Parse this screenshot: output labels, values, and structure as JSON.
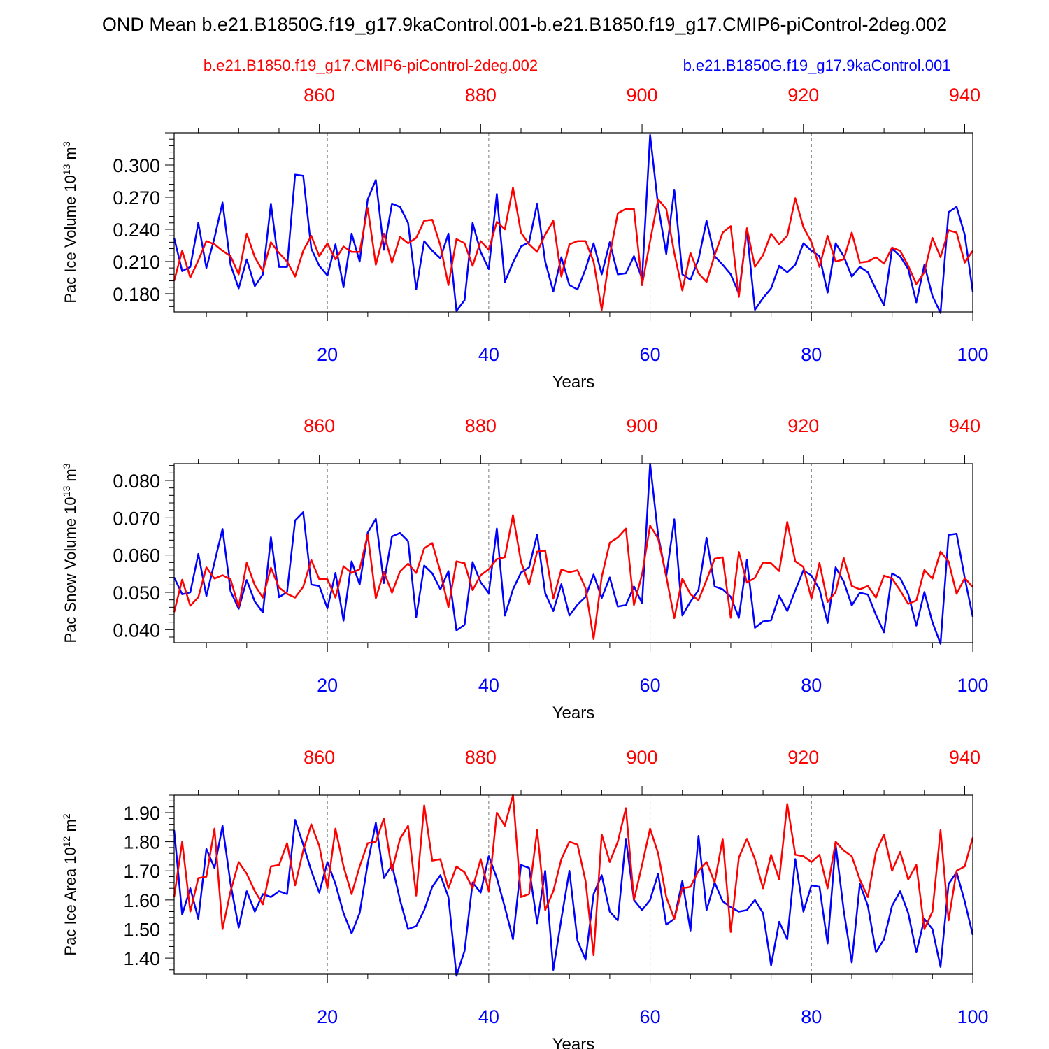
{
  "title": "OND Mean b.e21.B1850G.f19_g17.9kaControl.001-b.e21.B1850.f19_g17.CMIP6-piControl-2deg.002",
  "legend": {
    "red_label": "b.e21.B1850.f19_g17.CMIP6-piControl-2deg.002",
    "blue_label": "b.e21.B1850G.f19_g17.9kaControl.001"
  },
  "colors": {
    "red": "#ff0000",
    "blue": "#0000ff",
    "grid": "#777777"
  },
  "chart_data": [
    {
      "type": "line",
      "title": "",
      "xlabel": "Years",
      "ylabel": "Pac Ice Volume 10^13 m^3",
      "ylabel_main": "Pac Ice Volume 10",
      "ylabel_exp": "13",
      "ylabel_unit": "m",
      "ylabel_unit_exp": "3",
      "xlim": [
        1,
        100
      ],
      "ylim": [
        0.163,
        0.33
      ],
      "yticks": [
        0.18,
        0.21,
        0.24,
        0.27,
        0.3
      ],
      "ytick_labels": [
        "0.180",
        "0.210",
        "0.240",
        "0.270",
        "0.300"
      ],
      "xticks": [
        20,
        40,
        60,
        80,
        100
      ],
      "xtick_labels": [
        "20",
        "40",
        "60",
        "80",
        "100"
      ],
      "top_xticks": [
        860,
        880,
        900,
        920,
        940
      ],
      "top_xtick_labels": [
        "860",
        "880",
        "900",
        "920",
        "940"
      ],
      "top_offset": 841,
      "grid_x": [
        20,
        40,
        60,
        80
      ],
      "series": [
        {
          "name": "b.e21.B1850G.f19_g17.9kaControl.001",
          "color": "blue",
          "values": [
            0.232,
            0.201,
            0.205,
            0.246,
            0.204,
            0.232,
            0.265,
            0.207,
            0.185,
            0.212,
            0.187,
            0.198,
            0.264,
            0.205,
            0.205,
            0.291,
            0.29,
            0.222,
            0.206,
            0.197,
            0.226,
            0.186,
            0.236,
            0.21,
            0.268,
            0.286,
            0.221,
            0.264,
            0.261,
            0.246,
            0.184,
            0.229,
            0.22,
            0.213,
            0.236,
            0.164,
            0.174,
            0.246,
            0.219,
            0.203,
            0.273,
            0.191,
            0.209,
            0.224,
            0.228,
            0.264,
            0.21,
            0.182,
            0.214,
            0.188,
            0.184,
            0.203,
            0.227,
            0.198,
            0.228,
            0.198,
            0.199,
            0.215,
            0.194,
            0.328,
            0.262,
            0.217,
            0.277,
            0.198,
            0.193,
            0.212,
            0.248,
            0.215,
            0.207,
            0.198,
            0.18,
            0.239,
            0.165,
            0.176,
            0.185,
            0.206,
            0.2,
            0.207,
            0.227,
            0.22,
            0.215,
            0.181,
            0.227,
            0.215,
            0.196,
            0.205,
            0.2,
            0.184,
            0.169,
            0.222,
            0.215,
            0.203,
            0.172,
            0.207,
            0.178,
            0.162,
            0.256,
            0.261,
            0.235,
            0.182
          ]
        },
        {
          "name": "b.e21.B1850.f19_g17.CMIP6-piControl-2deg.002",
          "color": "red",
          "values": [
            0.192,
            0.22,
            0.195,
            0.211,
            0.229,
            0.226,
            0.22,
            0.215,
            0.198,
            0.236,
            0.214,
            0.201,
            0.228,
            0.218,
            0.21,
            0.196,
            0.22,
            0.234,
            0.215,
            0.227,
            0.212,
            0.224,
            0.219,
            0.219,
            0.26,
            0.207,
            0.236,
            0.209,
            0.233,
            0.227,
            0.232,
            0.248,
            0.249,
            0.225,
            0.188,
            0.231,
            0.227,
            0.206,
            0.229,
            0.221,
            0.247,
            0.24,
            0.279,
            0.237,
            0.226,
            0.219,
            0.235,
            0.248,
            0.196,
            0.226,
            0.229,
            0.229,
            0.21,
            0.165,
            0.216,
            0.255,
            0.259,
            0.259,
            0.188,
            0.229,
            0.268,
            0.259,
            0.218,
            0.183,
            0.218,
            0.199,
            0.191,
            0.216,
            0.237,
            0.243,
            0.177,
            0.241,
            0.205,
            0.216,
            0.236,
            0.226,
            0.234,
            0.269,
            0.242,
            0.228,
            0.205,
            0.234,
            0.21,
            0.212,
            0.237,
            0.209,
            0.21,
            0.214,
            0.208,
            0.223,
            0.22,
            0.206,
            0.189,
            0.2,
            0.232,
            0.214,
            0.239,
            0.237,
            0.209,
            0.22
          ]
        }
      ]
    },
    {
      "type": "line",
      "title": "",
      "xlabel": "Years",
      "ylabel": "Pac Snow Volume 10^13 m^3",
      "ylabel_main": "Pac Snow Volume 10",
      "ylabel_exp": "13",
      "ylabel_unit": "m",
      "ylabel_unit_exp": "3",
      "xlim": [
        1,
        100
      ],
      "ylim": [
        0.0365,
        0.0845
      ],
      "yticks": [
        0.04,
        0.05,
        0.06,
        0.07,
        0.08
      ],
      "ytick_labels": [
        "0.040",
        "0.050",
        "0.060",
        "0.070",
        "0.080"
      ],
      "xticks": [
        20,
        40,
        60,
        80,
        100
      ],
      "xtick_labels": [
        "20",
        "40",
        "60",
        "80",
        "100"
      ],
      "top_xticks": [
        860,
        880,
        900,
        920,
        940
      ],
      "top_xtick_labels": [
        "860",
        "880",
        "900",
        "920",
        "940"
      ],
      "top_offset": 841,
      "grid_x": [
        20,
        40,
        60,
        80
      ],
      "series": [
        {
          "name": "b.e21.B1850G.f19_g17.9kaControl.001",
          "color": "blue",
          "values": [
            0.054,
            0.0495,
            0.05,
            0.0603,
            0.049,
            0.058,
            0.067,
            0.0503,
            0.0456,
            0.0533,
            0.0475,
            0.0446,
            0.0648,
            0.0487,
            0.0501,
            0.0693,
            0.0715,
            0.0521,
            0.0517,
            0.0457,
            0.0552,
            0.0424,
            0.0583,
            0.0521,
            0.066,
            0.0697,
            0.0525,
            0.065,
            0.0659,
            0.0637,
            0.0434,
            0.0572,
            0.0551,
            0.0508,
            0.0557,
            0.0398,
            0.0413,
            0.0581,
            0.0527,
            0.0498,
            0.0671,
            0.0438,
            0.0508,
            0.0553,
            0.0567,
            0.0655,
            0.0498,
            0.045,
            0.0522,
            0.0438,
            0.0467,
            0.0488,
            0.0548,
            0.0485,
            0.054,
            0.0462,
            0.0466,
            0.0516,
            0.0471,
            0.0845,
            0.0653,
            0.0542,
            0.0696,
            0.0438,
            0.0475,
            0.0506,
            0.0646,
            0.0516,
            0.0508,
            0.0488,
            0.0432,
            0.0587,
            0.0405,
            0.0422,
            0.0425,
            0.0491,
            0.045,
            0.0505,
            0.0559,
            0.0545,
            0.0508,
            0.0418,
            0.0567,
            0.0529,
            0.0465,
            0.0499,
            0.0494,
            0.0439,
            0.0393,
            0.0551,
            0.0538,
            0.0495,
            0.0411,
            0.0501,
            0.042,
            0.0362,
            0.0654,
            0.0657,
            0.0539,
            0.0435
          ]
        },
        {
          "name": "b.e21.B1850.f19_g17.CMIP6-piControl-2deg.002",
          "color": "red",
          "values": [
            0.0447,
            0.0534,
            0.0464,
            0.0487,
            0.0567,
            0.0537,
            0.0546,
            0.0535,
            0.0461,
            0.0579,
            0.0519,
            0.0486,
            0.0566,
            0.0513,
            0.0496,
            0.0486,
            0.0515,
            0.0587,
            0.0535,
            0.0535,
            0.0486,
            0.057,
            0.0552,
            0.0562,
            0.0655,
            0.0484,
            0.0555,
            0.0499,
            0.0556,
            0.0577,
            0.0552,
            0.0618,
            0.0632,
            0.0555,
            0.046,
            0.0583,
            0.0578,
            0.0506,
            0.0546,
            0.0562,
            0.0589,
            0.0594,
            0.0707,
            0.0582,
            0.0521,
            0.0609,
            0.0612,
            0.0483,
            0.0561,
            0.0554,
            0.0559,
            0.0511,
            0.0375,
            0.0541,
            0.0633,
            0.0647,
            0.0671,
            0.0466,
            0.0548,
            0.0679,
            0.0644,
            0.0543,
            0.0431,
            0.0537,
            0.0495,
            0.0479,
            0.0533,
            0.059,
            0.0594,
            0.0432,
            0.0608,
            0.0526,
            0.0539,
            0.058,
            0.0578,
            0.0557,
            0.0689,
            0.0583,
            0.0568,
            0.0483,
            0.0579,
            0.0474,
            0.0501,
            0.0592,
            0.0517,
            0.0508,
            0.0517,
            0.0486,
            0.0545,
            0.0537,
            0.0505,
            0.0469,
            0.0478,
            0.056,
            0.0537,
            0.0609,
            0.0583,
            0.0496,
            0.0538,
            0.0514
          ]
        }
      ]
    },
    {
      "type": "line",
      "title": "",
      "xlabel": "Years",
      "ylabel": "Pac Ice Area 10^12 m^2",
      "ylabel_main": "Pac Ice Area 10",
      "ylabel_exp": "12",
      "ylabel_unit": "m",
      "ylabel_unit_exp": "2",
      "xlim": [
        1,
        100
      ],
      "ylim": [
        1.345,
        1.96
      ],
      "yticks": [
        1.4,
        1.5,
        1.6,
        1.7,
        1.8,
        1.9
      ],
      "ytick_labels": [
        "1.40",
        "1.50",
        "1.60",
        "1.70",
        "1.80",
        "1.90"
      ],
      "xticks": [
        20,
        40,
        60,
        80,
        100
      ],
      "xtick_labels": [
        "20",
        "40",
        "60",
        "80",
        "100"
      ],
      "top_xticks": [
        860,
        880,
        900,
        920,
        940
      ],
      "top_xtick_labels": [
        "860",
        "880",
        "900",
        "920",
        "940"
      ],
      "top_offset": 841,
      "grid_x": [
        20,
        40,
        60,
        80
      ],
      "series": [
        {
          "name": "b.e21.B1850G.f19_g17.9kaControl.001",
          "color": "blue",
          "values": [
            1.84,
            1.55,
            1.64,
            1.535,
            1.775,
            1.71,
            1.855,
            1.655,
            1.505,
            1.63,
            1.56,
            1.62,
            1.61,
            1.63,
            1.62,
            1.875,
            1.79,
            1.7,
            1.625,
            1.73,
            1.655,
            1.555,
            1.485,
            1.555,
            1.725,
            1.865,
            1.675,
            1.72,
            1.6,
            1.5,
            1.51,
            1.565,
            1.645,
            1.685,
            1.61,
            1.34,
            1.425,
            1.66,
            1.625,
            1.75,
            1.675,
            1.575,
            1.465,
            1.72,
            1.71,
            1.52,
            1.7,
            1.36,
            1.535,
            1.7,
            1.46,
            1.395,
            1.62,
            1.685,
            1.56,
            1.53,
            1.81,
            1.6,
            1.565,
            1.6,
            1.69,
            1.515,
            1.535,
            1.665,
            1.495,
            1.82,
            1.565,
            1.66,
            1.595,
            1.575,
            1.56,
            1.565,
            1.6,
            1.555,
            1.375,
            1.525,
            1.465,
            1.74,
            1.56,
            1.65,
            1.645,
            1.45,
            1.79,
            1.565,
            1.385,
            1.655,
            1.58,
            1.42,
            1.465,
            1.58,
            1.63,
            1.555,
            1.42,
            1.535,
            1.5,
            1.37,
            1.655,
            1.695,
            1.595,
            1.48
          ]
        },
        {
          "name": "b.e21.B1850.f19_g17.CMIP6-piControl-2deg.002",
          "color": "red",
          "values": [
            1.61,
            1.8,
            1.56,
            1.675,
            1.68,
            1.845,
            1.5,
            1.63,
            1.73,
            1.69,
            1.63,
            1.585,
            1.715,
            1.72,
            1.795,
            1.65,
            1.77,
            1.86,
            1.785,
            1.64,
            1.845,
            1.715,
            1.62,
            1.715,
            1.795,
            1.8,
            1.88,
            1.7,
            1.81,
            1.855,
            1.615,
            1.925,
            1.735,
            1.74,
            1.64,
            1.715,
            1.695,
            1.64,
            1.74,
            1.63,
            1.9,
            1.855,
            1.96,
            1.61,
            1.62,
            1.84,
            1.565,
            1.63,
            1.74,
            1.8,
            1.79,
            1.665,
            1.41,
            1.825,
            1.73,
            1.8,
            1.915,
            1.6,
            1.72,
            1.845,
            1.76,
            1.61,
            1.535,
            1.64,
            1.645,
            1.7,
            1.73,
            1.66,
            1.81,
            1.49,
            1.745,
            1.81,
            1.74,
            1.64,
            1.755,
            1.67,
            1.93,
            1.755,
            1.75,
            1.73,
            1.755,
            1.64,
            1.8,
            1.77,
            1.75,
            1.67,
            1.61,
            1.765,
            1.825,
            1.7,
            1.765,
            1.67,
            1.72,
            1.5,
            1.56,
            1.84,
            1.53,
            1.7,
            1.715,
            1.815
          ]
        }
      ]
    }
  ]
}
